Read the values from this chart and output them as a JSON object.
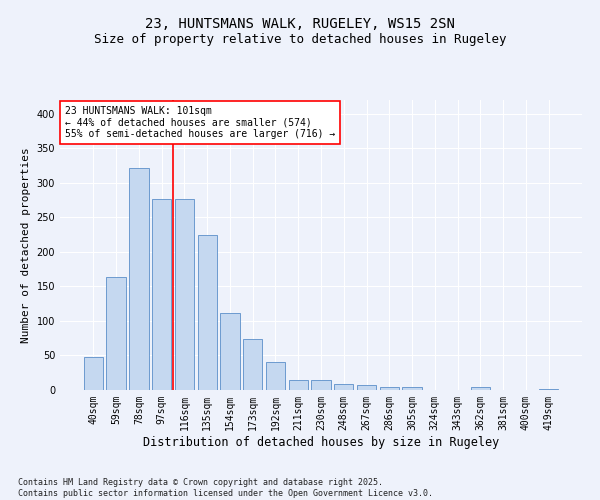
{
  "title1": "23, HUNTSMANS WALK, RUGELEY, WS15 2SN",
  "title2": "Size of property relative to detached houses in Rugeley",
  "xlabel": "Distribution of detached houses by size in Rugeley",
  "ylabel": "Number of detached properties",
  "categories": [
    "40sqm",
    "59sqm",
    "78sqm",
    "97sqm",
    "116sqm",
    "135sqm",
    "154sqm",
    "173sqm",
    "192sqm",
    "211sqm",
    "230sqm",
    "248sqm",
    "267sqm",
    "286sqm",
    "305sqm",
    "324sqm",
    "343sqm",
    "362sqm",
    "381sqm",
    "400sqm",
    "419sqm"
  ],
  "values": [
    48,
    163,
    322,
    277,
    276,
    225,
    112,
    74,
    40,
    15,
    15,
    9,
    7,
    4,
    4,
    0,
    0,
    4,
    0,
    0,
    2
  ],
  "bar_color": "#c5d8f0",
  "bar_edge_color": "#5b8fc9",
  "redline_index": 3.5,
  "annotation_text": "23 HUNTSMANS WALK: 101sqm\n← 44% of detached houses are smaller (574)\n55% of semi-detached houses are larger (716) →",
  "footnote": "Contains HM Land Registry data © Crown copyright and database right 2025.\nContains public sector information licensed under the Open Government Licence v3.0.",
  "ylim": [
    0,
    420
  ],
  "background_color": "#eef2fb",
  "grid_color": "#ffffff",
  "title_fontsize": 10,
  "subtitle_fontsize": 9,
  "xlabel_fontsize": 8.5,
  "ylabel_fontsize": 8,
  "tick_fontsize": 7,
  "annotation_fontsize": 7,
  "footnote_fontsize": 6
}
